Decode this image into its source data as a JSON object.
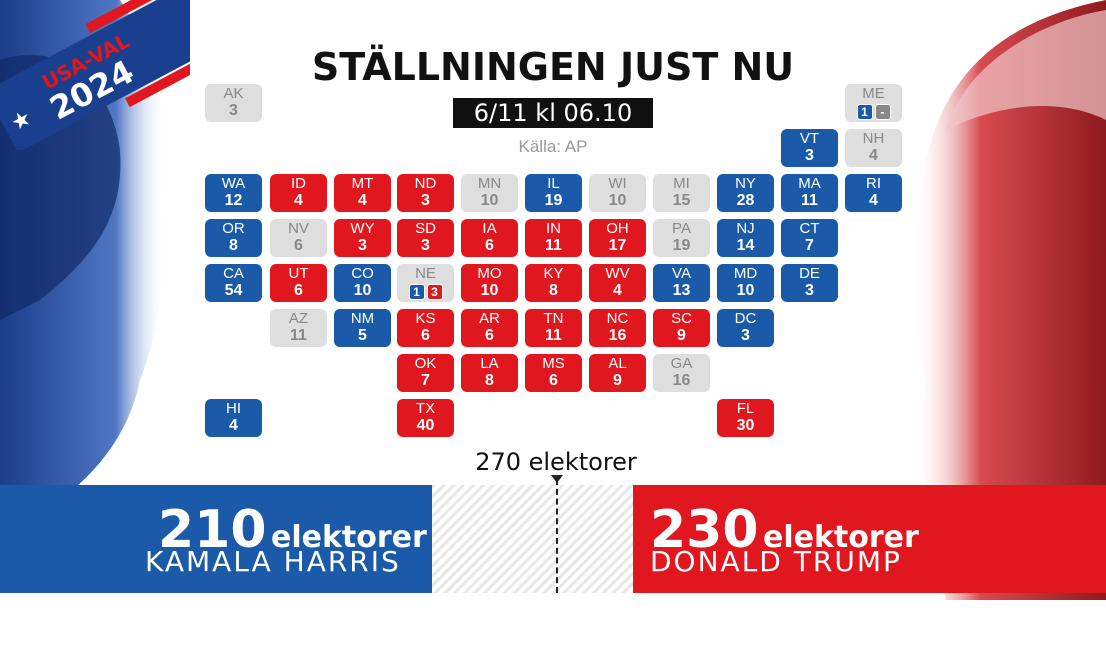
{
  "badge": {
    "line1": "USA-VAL",
    "line2": "2024"
  },
  "title": "STÄLLNINGEN JUST NU",
  "date": "6/11 kl 06.10",
  "source": "Källa: AP",
  "threshold_label": "270 elektorer",
  "harris": {
    "votes": "210",
    "unit": "elektorer",
    "name": "KAMALA HARRIS"
  },
  "trump": {
    "votes": "230",
    "unit": "elektorer",
    "name": "DONALD TRUMP"
  },
  "colors": {
    "dem": "#1a5aa8",
    "rep": "#e0171e",
    "undecided": "#dedede"
  },
  "states": [
    {
      "abbr": "AK",
      "ev": "3",
      "party": "und"
    },
    {
      "abbr": "ME",
      "ev": "",
      "party": "split",
      "split": [
        {
          "v": "1",
          "p": "d"
        },
        {
          "v": "-",
          "p": "n"
        }
      ]
    },
    {
      "abbr": "VT",
      "ev": "3",
      "party": "dem"
    },
    {
      "abbr": "NH",
      "ev": "4",
      "party": "und"
    },
    {
      "abbr": "WA",
      "ev": "12",
      "party": "dem"
    },
    {
      "abbr": "ID",
      "ev": "4",
      "party": "rep"
    },
    {
      "abbr": "MT",
      "ev": "4",
      "party": "rep"
    },
    {
      "abbr": "ND",
      "ev": "3",
      "party": "rep"
    },
    {
      "abbr": "MN",
      "ev": "10",
      "party": "und"
    },
    {
      "abbr": "IL",
      "ev": "19",
      "party": "dem"
    },
    {
      "abbr": "WI",
      "ev": "10",
      "party": "und"
    },
    {
      "abbr": "MI",
      "ev": "15",
      "party": "und"
    },
    {
      "abbr": "NY",
      "ev": "28",
      "party": "dem"
    },
    {
      "abbr": "MA",
      "ev": "11",
      "party": "dem"
    },
    {
      "abbr": "RI",
      "ev": "4",
      "party": "dem"
    },
    {
      "abbr": "OR",
      "ev": "8",
      "party": "dem"
    },
    {
      "abbr": "NV",
      "ev": "6",
      "party": "und"
    },
    {
      "abbr": "WY",
      "ev": "3",
      "party": "rep"
    },
    {
      "abbr": "SD",
      "ev": "3",
      "party": "rep"
    },
    {
      "abbr": "IA",
      "ev": "6",
      "party": "rep"
    },
    {
      "abbr": "IN",
      "ev": "11",
      "party": "rep"
    },
    {
      "abbr": "OH",
      "ev": "17",
      "party": "rep"
    },
    {
      "abbr": "PA",
      "ev": "19",
      "party": "und"
    },
    {
      "abbr": "NJ",
      "ev": "14",
      "party": "dem"
    },
    {
      "abbr": "CT",
      "ev": "7",
      "party": "dem"
    },
    {
      "abbr": "CA",
      "ev": "54",
      "party": "dem"
    },
    {
      "abbr": "UT",
      "ev": "6",
      "party": "rep"
    },
    {
      "abbr": "CO",
      "ev": "10",
      "party": "dem"
    },
    {
      "abbr": "NE",
      "ev": "",
      "party": "split",
      "split": [
        {
          "v": "1",
          "p": "d"
        },
        {
          "v": "3",
          "p": "r"
        }
      ]
    },
    {
      "abbr": "MO",
      "ev": "10",
      "party": "rep"
    },
    {
      "abbr": "KY",
      "ev": "8",
      "party": "rep"
    },
    {
      "abbr": "WV",
      "ev": "4",
      "party": "rep"
    },
    {
      "abbr": "VA",
      "ev": "13",
      "party": "dem"
    },
    {
      "abbr": "MD",
      "ev": "10",
      "party": "dem"
    },
    {
      "abbr": "DE",
      "ev": "3",
      "party": "dem"
    },
    {
      "abbr": "AZ",
      "ev": "11",
      "party": "und"
    },
    {
      "abbr": "NM",
      "ev": "5",
      "party": "dem"
    },
    {
      "abbr": "KS",
      "ev": "6",
      "party": "rep"
    },
    {
      "abbr": "AR",
      "ev": "6",
      "party": "rep"
    },
    {
      "abbr": "TN",
      "ev": "11",
      "party": "rep"
    },
    {
      "abbr": "NC",
      "ev": "16",
      "party": "rep"
    },
    {
      "abbr": "SC",
      "ev": "9",
      "party": "rep"
    },
    {
      "abbr": "DC",
      "ev": "3",
      "party": "dem"
    },
    {
      "abbr": "OK",
      "ev": "7",
      "party": "rep"
    },
    {
      "abbr": "LA",
      "ev": "8",
      "party": "rep"
    },
    {
      "abbr": "MS",
      "ev": "6",
      "party": "rep"
    },
    {
      "abbr": "AL",
      "ev": "9",
      "party": "rep"
    },
    {
      "abbr": "GA",
      "ev": "16",
      "party": "und"
    },
    {
      "abbr": "HI",
      "ev": "4",
      "party": "dem"
    },
    {
      "abbr": "TX",
      "ev": "40",
      "party": "rep"
    },
    {
      "abbr": "FL",
      "ev": "30",
      "party": "rep"
    }
  ]
}
